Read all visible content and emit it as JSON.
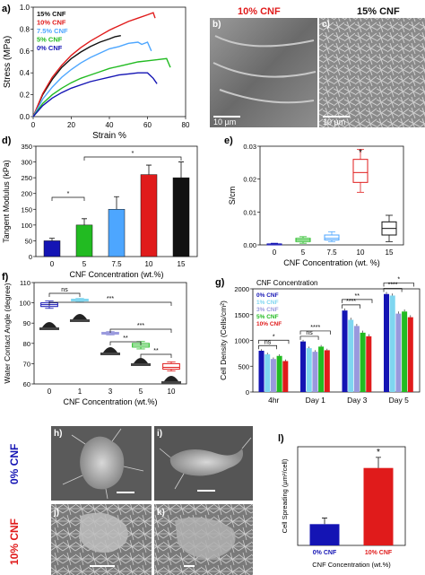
{
  "panels": {
    "a": "a)",
    "b": "b)",
    "c": "c)",
    "d": "d)",
    "e": "e)",
    "f": "f)",
    "g": "g)",
    "h": "h)",
    "i": "i)",
    "j": "j)",
    "k": "k)",
    "l": "l)"
  },
  "sem": {
    "b_title": "10% CNF",
    "c_title": "15% CNF",
    "b_scale": "10 µm",
    "c_scale": "10 µm",
    "row_top_label": "0% CNF",
    "row_bottom_label": "10% CNF"
  },
  "colors": {
    "c0": "#1414b4",
    "c5": "#22bb22",
    "c75": "#4da6ff",
    "c10": "#e01b1b",
    "c15": "#111111",
    "c1": "#7fd6f0",
    "c3": "#9999dd"
  },
  "chart_data": [
    {
      "id": "a",
      "type": "line",
      "xlabel": "Strain %",
      "ylabel": "Stress (MPa)",
      "xlim": [
        0,
        80
      ],
      "ylim": [
        0,
        1.0
      ],
      "xticks": [
        "0",
        "20",
        "40",
        "60",
        "80"
      ],
      "yticks": [
        "0.0",
        "0.2",
        "0.4",
        "0.6",
        "0.8",
        "1.0"
      ],
      "legend_position": "top-left",
      "series": [
        {
          "name": "15% CNF",
          "color": "#111111",
          "x": [
            0,
            5,
            10,
            15,
            20,
            25,
            30,
            35,
            40,
            43,
            46
          ],
          "y": [
            0,
            0.2,
            0.34,
            0.45,
            0.53,
            0.59,
            0.64,
            0.68,
            0.71,
            0.73,
            0.74
          ]
        },
        {
          "name": "10% CNF",
          "color": "#e01b1b",
          "x": [
            0,
            5,
            10,
            15,
            20,
            25,
            30,
            35,
            40,
            45,
            50,
            55,
            60,
            63,
            64
          ],
          "y": [
            0,
            0.21,
            0.36,
            0.47,
            0.56,
            0.63,
            0.69,
            0.74,
            0.79,
            0.83,
            0.87,
            0.9,
            0.93,
            0.95,
            0.9
          ]
        },
        {
          "name": "7.5% CNF",
          "color": "#4da6ff",
          "x": [
            0,
            5,
            10,
            15,
            20,
            25,
            30,
            35,
            40,
            45,
            50,
            55,
            57,
            60,
            62
          ],
          "y": [
            0,
            0.16,
            0.27,
            0.36,
            0.43,
            0.49,
            0.54,
            0.58,
            0.62,
            0.64,
            0.67,
            0.68,
            0.66,
            0.68,
            0.6
          ]
        },
        {
          "name": "5% CNF",
          "color": "#22bb22",
          "x": [
            0,
            5,
            10,
            15,
            20,
            25,
            30,
            35,
            40,
            45,
            50,
            55,
            60,
            65,
            70,
            72
          ],
          "y": [
            0,
            0.12,
            0.2,
            0.26,
            0.31,
            0.35,
            0.38,
            0.41,
            0.44,
            0.46,
            0.48,
            0.5,
            0.51,
            0.52,
            0.53,
            0.45
          ]
        },
        {
          "name": "0% CNF",
          "color": "#1414b4",
          "x": [
            0,
            5,
            10,
            15,
            20,
            25,
            30,
            35,
            40,
            45,
            50,
            55,
            60,
            63,
            65
          ],
          "y": [
            0,
            0.1,
            0.17,
            0.22,
            0.26,
            0.29,
            0.32,
            0.34,
            0.36,
            0.38,
            0.39,
            0.4,
            0.4,
            0.35,
            0.3
          ]
        }
      ]
    },
    {
      "id": "d",
      "type": "bar",
      "xlabel": "CNF Concentration (wt.%)",
      "ylabel": "Tangent Modulus (kPa)",
      "categories": [
        "0",
        "5",
        "7.5",
        "10",
        "15"
      ],
      "values": [
        50,
        100,
        150,
        260,
        250
      ],
      "errors": [
        8,
        20,
        40,
        30,
        50
      ],
      "colors": [
        "#1414b4",
        "#22bb22",
        "#4da6ff",
        "#e01b1b",
        "#111111"
      ],
      "ylim": [
        0,
        350
      ],
      "yticks": [
        "0",
        "50",
        "100",
        "150",
        "200",
        "250",
        "300",
        "350"
      ],
      "significance": [
        "*",
        "*"
      ]
    },
    {
      "id": "e",
      "type": "box",
      "xlabel": "CNF Concentration (wt. %)",
      "ylabel": "S/cm",
      "categories": [
        "0",
        "5",
        "7.5",
        "10",
        "15"
      ],
      "colors": [
        "#1414b4",
        "#22bb22",
        "#4da6ff",
        "#e01b1b",
        "#111111"
      ],
      "boxes": [
        {
          "min": 0.0,
          "q1": 0.0,
          "median": 0.0,
          "q3": 0.0003,
          "max": 0.0005
        },
        {
          "min": 0.0005,
          "q1": 0.001,
          "median": 0.0015,
          "q3": 0.002,
          "max": 0.0025
        },
        {
          "min": 0.001,
          "q1": 0.0015,
          "median": 0.002,
          "q3": 0.003,
          "max": 0.004
        },
        {
          "min": 0.016,
          "q1": 0.019,
          "median": 0.022,
          "q3": 0.026,
          "max": 0.029
        },
        {
          "min": 0.001,
          "q1": 0.003,
          "median": 0.005,
          "q3": 0.007,
          "max": 0.009
        }
      ],
      "ylim": [
        0,
        0.03
      ],
      "yticks": [
        "0.00",
        "0.01",
        "0.02",
        "0.03"
      ],
      "significance": [
        "*"
      ]
    },
    {
      "id": "f",
      "type": "box",
      "xlabel": "CNF Concentration (wt.%)",
      "ylabel": "Water Contact Angle (degree)",
      "categories": [
        "0",
        "1",
        "3",
        "5",
        "10"
      ],
      "colors": [
        "#1414b4",
        "#7fd6f0",
        "#9999dd",
        "#22bb22",
        "#e01b1b"
      ],
      "boxes": [
        {
          "min": 96,
          "q1": 97,
          "median": 98,
          "q3": 99,
          "max": 100
        },
        {
          "min": 99.5,
          "q1": 100,
          "median": 100.5,
          "q3": 101,
          "max": 101.5
        },
        {
          "min": 81.5,
          "q1": 82,
          "median": 82.5,
          "q3": 83,
          "max": 83.5
        },
        {
          "min": 74,
          "q1": 75,
          "median": 76,
          "q3": 77,
          "max": 78
        },
        {
          "min": 62,
          "q1": 63,
          "median": 64,
          "q3": 66,
          "max": 67
        }
      ],
      "ylim": [
        55,
        110
      ],
      "yticks": [
        "60",
        "70",
        "80",
        "90",
        "100",
        "110"
      ],
      "significance": [
        "ns",
        "***",
        "***",
        "**",
        "**"
      ]
    },
    {
      "id": "g",
      "type": "bar",
      "title": "CNF Concentration",
      "xlabel": "",
      "ylabel": "Cell Density (Cells/cm²)",
      "categories": [
        "4hr",
        "Day 1",
        "Day 3",
        "Day 5"
      ],
      "legend_position": "top-left",
      "series": [
        {
          "name": "0% CNF",
          "color": "#1414b4",
          "values": [
            800,
            980,
            1580,
            1900
          ]
        },
        {
          "name": "1% CNF",
          "color": "#7fd6f0",
          "values": [
            730,
            850,
            1400,
            1870
          ]
        },
        {
          "name": "3% CNF",
          "color": "#9999dd",
          "values": [
            640,
            780,
            1280,
            1520
          ]
        },
        {
          "name": "5% CNF",
          "color": "#22bb22",
          "values": [
            700,
            880,
            1150,
            1560
          ]
        },
        {
          "name": "10% CNF",
          "color": "#e01b1b",
          "values": [
            600,
            810,
            1080,
            1450
          ]
        }
      ],
      "errors": [
        30,
        30,
        40,
        40
      ],
      "ylim": [
        0,
        2000
      ],
      "yticks": [
        "0",
        "500",
        "1000",
        "1500",
        "2000"
      ],
      "significance": [
        "*",
        "ns",
        "****",
        "ns",
        "**",
        "****",
        "*",
        "****"
      ]
    },
    {
      "id": "l",
      "type": "bar",
      "xlabel": "CNF Concentration (wt.%)",
      "ylabel": "Cell Spreading (µm²/cell)",
      "categories": [
        "0% CNF",
        "10% CNF"
      ],
      "values": [
        140,
        510
      ],
      "errors": [
        40,
        70
      ],
      "colors": [
        "#1414b4",
        "#e01b1b"
      ],
      "ylim": [
        0,
        650
      ],
      "significance": [
        "*"
      ]
    }
  ]
}
